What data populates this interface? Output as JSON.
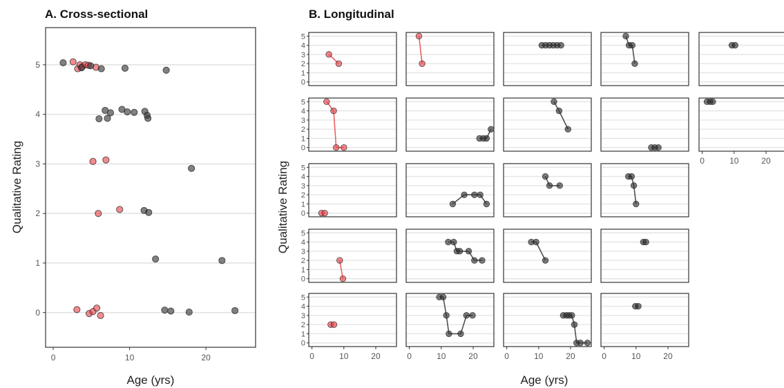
{
  "colors": {
    "red": "#e8434a",
    "grey": "#333333",
    "gridline": "#e3e3e3",
    "frame": "#333333"
  },
  "chart_data": [
    {
      "type": "scatter",
      "title": "A. Cross-sectional",
      "xlabel": "Age (yrs)",
      "ylabel": "Qualitative Rating",
      "xlim": [
        -1,
        26.5
      ],
      "ylim": [
        -0.7,
        5.75
      ],
      "xticks": [
        "0",
        "10",
        "20"
      ],
      "yticks": [
        "0",
        "1",
        "2",
        "3",
        "4",
        "5"
      ],
      "grid": "horizontal",
      "series": [
        {
          "color": "red",
          "points": [
            [
              2.6,
              5.06
            ],
            [
              3.2,
              4.92
            ],
            [
              3.5,
              5.0
            ],
            [
              3.8,
              4.96
            ],
            [
              4.2,
              5.0
            ],
            [
              4.6,
              4.99
            ],
            [
              5.6,
              4.95
            ],
            [
              5.2,
              3.05
            ],
            [
              6.9,
              3.08
            ],
            [
              5.9,
              2.0
            ],
            [
              8.7,
              2.08
            ],
            [
              3.1,
              0.06
            ],
            [
              4.7,
              -0.02
            ],
            [
              5.2,
              0.02
            ],
            [
              5.7,
              0.09
            ],
            [
              6.2,
              -0.06
            ]
          ]
        },
        {
          "color": "grey",
          "points": [
            [
              1.3,
              5.04
            ],
            [
              3.7,
              4.94
            ],
            [
              4.9,
              4.98
            ],
            [
              6.3,
              4.92
            ],
            [
              9.4,
              4.93
            ],
            [
              14.8,
              4.89
            ],
            [
              6.0,
              3.91
            ],
            [
              6.8,
              4.08
            ],
            [
              7.1,
              3.92
            ],
            [
              7.5,
              4.03
            ],
            [
              9.0,
              4.1
            ],
            [
              9.7,
              4.05
            ],
            [
              10.6,
              4.04
            ],
            [
              12.0,
              4.06
            ],
            [
              12.3,
              3.98
            ],
            [
              12.4,
              3.92
            ],
            [
              18.1,
              2.91
            ],
            [
              11.9,
              2.06
            ],
            [
              12.5,
              2.02
            ],
            [
              13.4,
              1.08
            ],
            [
              22.1,
              1.05
            ],
            [
              14.6,
              0.05
            ],
            [
              15.4,
              0.03
            ],
            [
              17.8,
              0.01
            ],
            [
              23.8,
              0.04
            ]
          ]
        }
      ]
    },
    {
      "type": "line",
      "title": "B. Longitudinal",
      "xlabel": "Age (yrs)",
      "ylabel": "Qualitative Rating",
      "xlim": [
        -1,
        26.5
      ],
      "ylim": [
        -0.4,
        5.4
      ],
      "xticks": [
        "0",
        "10",
        "20"
      ],
      "yticks": [
        "0",
        "1",
        "2",
        "3",
        "4",
        "5"
      ],
      "grid": "horizontal",
      "facets": [
        {
          "row": 0,
          "col": 0,
          "color": "red",
          "points": [
            [
              5.3,
              3
            ],
            [
              8.4,
              2
            ]
          ]
        },
        {
          "row": 0,
          "col": 1,
          "color": "red",
          "points": [
            [
              3.0,
              5
            ],
            [
              4.0,
              2
            ]
          ]
        },
        {
          "row": 0,
          "col": 2,
          "color": "grey",
          "points": [
            [
              11,
              4
            ],
            [
              12.2,
              4
            ],
            [
              13.4,
              4
            ],
            [
              14.6,
              4
            ],
            [
              15.8,
              4
            ],
            [
              17,
              4
            ]
          ]
        },
        {
          "row": 0,
          "col": 3,
          "color": "grey",
          "points": [
            [
              6.8,
              5
            ],
            [
              7.8,
              4
            ],
            [
              8.8,
              4
            ],
            [
              9.6,
              2
            ]
          ]
        },
        {
          "row": 0,
          "col": 4,
          "color": "grey",
          "points": [
            [
              9.3,
              4
            ],
            [
              10.3,
              4
            ]
          ]
        },
        {
          "row": 1,
          "col": 0,
          "color": "red",
          "points": [
            [
              4.6,
              5
            ],
            [
              6.8,
              4
            ],
            [
              7.6,
              0
            ],
            [
              10.0,
              0
            ]
          ]
        },
        {
          "row": 1,
          "col": 1,
          "color": "grey",
          "points": [
            [
              22,
              1
            ],
            [
              23.2,
              1
            ],
            [
              24.2,
              1
            ],
            [
              25.6,
              2
            ]
          ]
        },
        {
          "row": 1,
          "col": 2,
          "color": "grey",
          "points": [
            [
              14.8,
              5
            ],
            [
              16.4,
              4
            ],
            [
              19.2,
              2
            ]
          ]
        },
        {
          "row": 1,
          "col": 3,
          "color": "grey",
          "points": [
            [
              14.8,
              0
            ],
            [
              15.9,
              0
            ],
            [
              17.0,
              0
            ]
          ]
        },
        {
          "row": 1,
          "col": 4,
          "color": "grey",
          "points": [
            [
              1.5,
              5
            ],
            [
              2.5,
              5
            ],
            [
              3.3,
              5
            ]
          ]
        },
        {
          "row": 2,
          "col": 0,
          "color": "red",
          "points": [
            [
              3.0,
              0
            ],
            [
              4.0,
              0
            ]
          ]
        },
        {
          "row": 2,
          "col": 1,
          "color": "grey",
          "points": [
            [
              13.6,
              1
            ],
            [
              17.2,
              2
            ],
            [
              20.4,
              2
            ],
            [
              22.2,
              2
            ],
            [
              24.2,
              1
            ]
          ]
        },
        {
          "row": 2,
          "col": 2,
          "color": "grey",
          "points": [
            [
              12.1,
              4
            ],
            [
              13.4,
              3
            ],
            [
              16.6,
              3
            ]
          ]
        },
        {
          "row": 2,
          "col": 3,
          "color": "grey",
          "points": [
            [
              7.6,
              4
            ],
            [
              8.6,
              4
            ],
            [
              9.3,
              3
            ],
            [
              10.0,
              1
            ]
          ]
        },
        {
          "row": 3,
          "col": 0,
          "color": "red",
          "points": [
            [
              8.7,
              2
            ],
            [
              9.7,
              0
            ]
          ]
        },
        {
          "row": 3,
          "col": 1,
          "color": "grey",
          "points": [
            [
              12.2,
              4
            ],
            [
              13.9,
              4
            ],
            [
              14.9,
              3
            ],
            [
              15.8,
              3
            ],
            [
              18.6,
              3
            ],
            [
              20.4,
              2
            ],
            [
              22.8,
              2
            ]
          ]
        },
        {
          "row": 3,
          "col": 2,
          "color": "grey",
          "points": [
            [
              7.7,
              4
            ],
            [
              9.2,
              4
            ],
            [
              12.1,
              2
            ]
          ]
        },
        {
          "row": 3,
          "col": 3,
          "color": "grey",
          "points": [
            [
              12.3,
              4
            ],
            [
              13.1,
              4
            ]
          ]
        },
        {
          "row": 4,
          "col": 0,
          "color": "red",
          "points": [
            [
              5.9,
              2
            ],
            [
              6.9,
              2
            ]
          ]
        },
        {
          "row": 4,
          "col": 1,
          "color": "grey",
          "points": [
            [
              9.4,
              5
            ],
            [
              10.6,
              5
            ],
            [
              11.6,
              3
            ],
            [
              12.4,
              1
            ],
            [
              16.1,
              1
            ],
            [
              17.9,
              3
            ],
            [
              19.8,
              3
            ]
          ]
        },
        {
          "row": 4,
          "col": 2,
          "color": "grey",
          "points": [
            [
              17.7,
              3
            ],
            [
              18.7,
              3
            ],
            [
              19.5,
              3
            ],
            [
              20.4,
              3
            ],
            [
              21.2,
              2
            ],
            [
              21.9,
              0
            ],
            [
              23.1,
              0
            ],
            [
              25.3,
              0
            ]
          ]
        },
        {
          "row": 4,
          "col": 3,
          "color": "grey",
          "points": [
            [
              9.8,
              4
            ],
            [
              10.7,
              4
            ]
          ]
        }
      ]
    }
  ]
}
